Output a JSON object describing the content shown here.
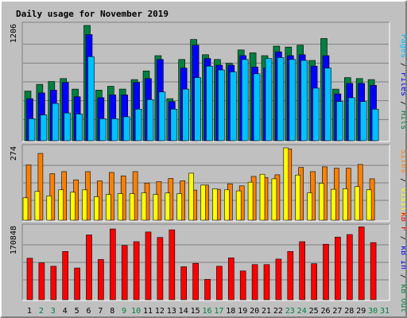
{
  "colors": {
    "hits": "#008040",
    "files": "#0000ff",
    "pages": "#00c0ff",
    "visits": "#ffff00",
    "sites": "#ff8000",
    "kbytes": "#ff0000",
    "kb_in": "#0000ff",
    "kb_out": "#008040",
    "title": "#0000ff",
    "weekend_day": "#008040",
    "weekday_day": "#000000",
    "panel_bg": "#c0c0c0"
  },
  "chart_data": {
    "type": "bar",
    "title": "Daily usage for November 2019",
    "categories": [
      "1",
      "2",
      "3",
      "4",
      "5",
      "6",
      "7",
      "8",
      "9",
      "10",
      "11",
      "12",
      "13",
      "14",
      "15",
      "16",
      "17",
      "18",
      "19",
      "20",
      "21",
      "22",
      "23",
      "24",
      "25",
      "26",
      "27",
      "28",
      "29",
      "30",
      "31"
    ],
    "weekend_days": [
      "2",
      "3",
      "9",
      "10",
      "16",
      "17",
      "23",
      "24",
      "30",
      "31"
    ],
    "panels": [
      {
        "ymax_label": "1206",
        "ymax": 1206,
        "side_label": [
          {
            "text": "Pages",
            "color": "#00c0ff"
          },
          {
            "text": " / ",
            "color": "#000000"
          },
          {
            "text": "Files",
            "color": "#0000ff"
          },
          {
            "text": " / ",
            "color": "#000000"
          },
          {
            "text": "Hits",
            "color": "#008040"
          }
        ],
        "series": [
          {
            "name": "Hits",
            "color": "#008040",
            "values": [
              520,
              590,
              620,
              650,
              540,
              1206,
              530,
              570,
              540,
              640,
              730,
              890,
              440,
              850,
              1060,
              900,
              850,
              810,
              950,
              920,
              890,
              990,
              980,
              1000,
              840,
              1070,
              540,
              660,
              650,
              640,
              0
            ]
          },
          {
            "name": "Files",
            "color": "#0000ff",
            "values": [
              440,
              500,
              530,
              610,
              460,
              1110,
              450,
              480,
              480,
              610,
              650,
              850,
              410,
              760,
              1000,
              860,
              790,
              790,
              890,
              770,
              760,
              930,
              890,
              900,
              780,
              890,
              490,
              600,
              600,
              580,
              0
            ]
          },
          {
            "name": "Pages",
            "color": "#00c0ff",
            "values": [
              230,
              270,
              390,
              290,
              280,
              880,
              230,
              230,
              250,
              330,
              430,
              510,
              330,
              540,
              660,
              780,
              740,
              720,
              850,
              700,
              860,
              870,
              850,
              840,
              550,
              760,
              410,
              450,
              410,
              330,
              0
            ]
          }
        ]
      },
      {
        "ymax_label": "274",
        "ymax": 274,
        "side_label": [
          {
            "text": "Sites",
            "color": "#ff8000"
          },
          {
            "text": " / ",
            "color": "#000000"
          },
          {
            "text": "Visits",
            "color": "#ffff00"
          }
        ],
        "series": [
          {
            "name": "Sites",
            "color": "#ff8000",
            "values": [
              210,
              253,
              176,
              184,
              153,
              184,
              149,
              181,
              168,
              184,
              141,
              146,
              158,
              149,
              114,
              133,
              117,
              138,
              130,
              166,
              162,
              172,
              270,
              200,
              184,
              202,
              197,
              197,
              211,
              157,
              0
            ]
          },
          {
            "name": "Visits",
            "color": "#ffff00",
            "values": [
              85,
              109,
              92,
              115,
              106,
              115,
              89,
              98,
              101,
              101,
              104,
              98,
              103,
              101,
              178,
              133,
              119,
              115,
              111,
              144,
              174,
              157,
              274,
              171,
              104,
              140,
              117,
              119,
              127,
              115,
              0
            ]
          }
        ]
      },
      {
        "ymax_label": "170848",
        "ymax": 170848,
        "side_label": [
          {
            "text": "kB F",
            "color": "#ff0000"
          },
          {
            "text": " / ",
            "color": "#000000"
          },
          {
            "text": "kB In",
            "color": "#0000ff"
          },
          {
            "text": " / ",
            "color": "#000000"
          },
          {
            "text": "kB Out",
            "color": "#008040"
          }
        ],
        "series": [
          {
            "name": "kB F",
            "color": "#ff0000",
            "values": [
              98000,
              87000,
              79000,
              114000,
              75000,
              153000,
              95000,
              167000,
              128000,
              137000,
              160000,
              147000,
              165000,
              78000,
              86000,
              48000,
              79000,
              99000,
              68000,
              83000,
              83000,
              96000,
              114000,
              137000,
              85000,
              131000,
              148000,
              154000,
              172000,
              135000,
              0
            ]
          }
        ]
      }
    ]
  }
}
